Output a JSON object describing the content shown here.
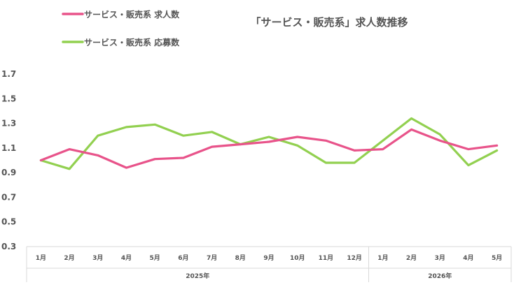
{
  "chart_data": {
    "type": "line",
    "title": "「サービス・販売系」求人数推移",
    "xlabel": "",
    "ylabel": "",
    "ylim": [
      0.3,
      1.7
    ],
    "yticks": [
      "0.3",
      "0.5",
      "0.7",
      "0.9",
      "1.1",
      "1.3",
      "1.5",
      "1.7"
    ],
    "categories": [
      "1月",
      "2月",
      "3月",
      "4月",
      "5月",
      "6月",
      "7月",
      "8月",
      "9月",
      "10月",
      "11月",
      "12月",
      "1月",
      "2月",
      "3月",
      "4月",
      "5月"
    ],
    "groups": [
      {
        "label": "2025年",
        "count": 12
      },
      {
        "label": "2026年",
        "count": 5
      }
    ],
    "grid": false,
    "legend_position": "top-left",
    "series": [
      {
        "name": "サービス・販売系 求人数",
        "color": "#e8538a",
        "values": [
          1.0,
          1.09,
          1.04,
          0.94,
          1.01,
          1.02,
          1.11,
          1.13,
          1.15,
          1.19,
          1.16,
          1.08,
          1.09,
          1.25,
          1.16,
          1.09,
          1.12
        ]
      },
      {
        "name": "サービス・販売系 応募数",
        "color": "#92d050",
        "values": [
          1.0,
          0.93,
          1.2,
          1.27,
          1.29,
          1.2,
          1.23,
          1.13,
          1.19,
          1.12,
          0.98,
          0.98,
          1.16,
          1.34,
          1.21,
          0.96,
          1.08
        ]
      }
    ]
  }
}
